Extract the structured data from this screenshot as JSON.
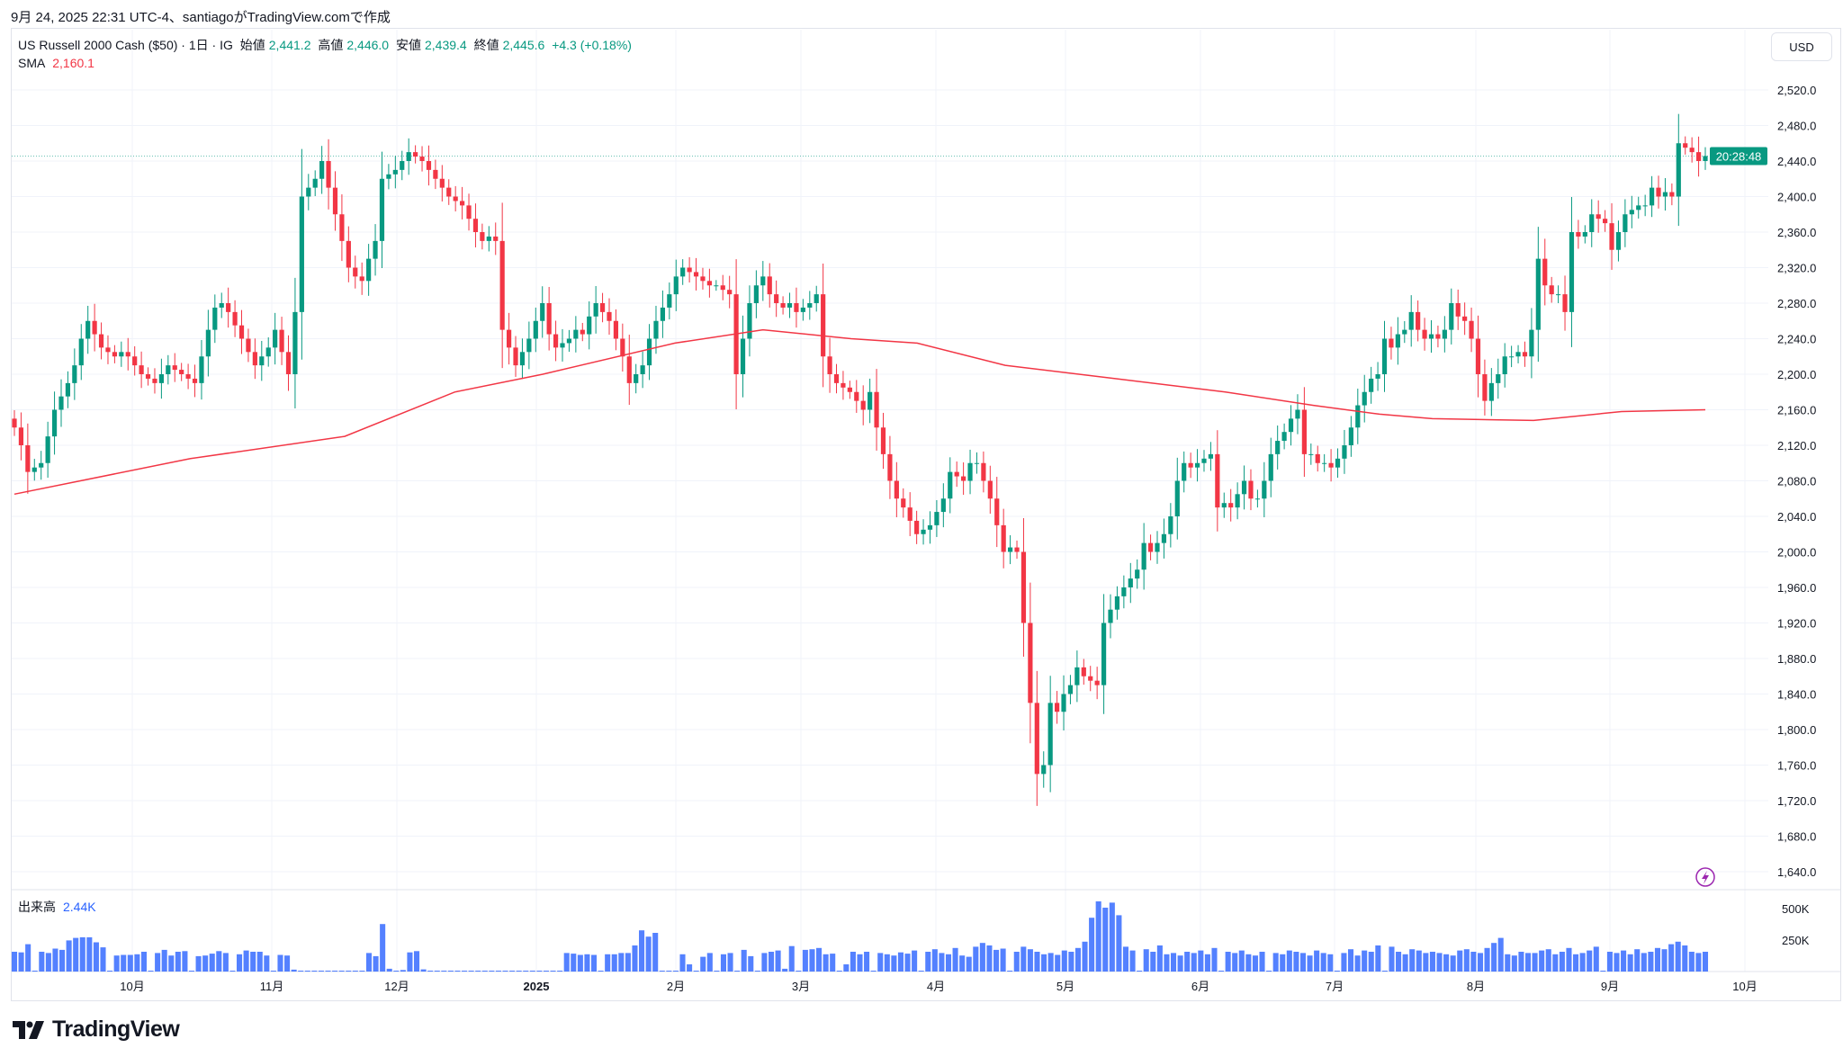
{
  "credit": "9月 24, 2025 22:31 UTC-4、santiagoがTradingView.comで作成",
  "legend": {
    "symbol": "US Russell 2000 Cash ($50) · 1日 · IG",
    "open_label": "始値",
    "open": "2,441.2",
    "high_label": "高値",
    "high": "2,446.0",
    "low_label": "安値",
    "low": "2,439.4",
    "close_label": "終値",
    "close": "2,445.6",
    "change": "+4.3 (+0.18%)",
    "sma_label": "SMA",
    "sma_value": "2,160.1"
  },
  "currency": "USD",
  "countdown": "20:28:48",
  "volume_legend": {
    "label": "出来高",
    "value": "2.44K"
  },
  "brand": "TradingView",
  "colors": {
    "up": "#089981",
    "down": "#f23645",
    "sma": "#f23645",
    "volume": "#2962ff",
    "lightning": "#9c27b0"
  },
  "icons": {
    "lightning": "lightning-icon",
    "logo": "tradingview-logo"
  },
  "chart_data": {
    "type": "candlestick",
    "ylim": [
      1620,
      2540
    ],
    "y_ticks": [
      "2,520.0",
      "2,480.0",
      "2,440.0",
      "2,400.0",
      "2,360.0",
      "2,320.0",
      "2,280.0",
      "2,240.0",
      "2,200.0",
      "2,160.0",
      "2,120.0",
      "2,080.0",
      "2,040.0",
      "2,000.0",
      "1,960.0",
      "1,920.0",
      "1,880.0",
      "1,840.0",
      "1,800.0",
      "1,760.0",
      "1,720.0",
      "1,680.0",
      "1,640.0"
    ],
    "y_tick_values": [
      2520,
      2480,
      2440,
      2400,
      2360,
      2320,
      2280,
      2240,
      2200,
      2160,
      2120,
      2080,
      2040,
      2000,
      1960,
      1920,
      1880,
      1840,
      1800,
      1760,
      1720,
      1680,
      1640
    ],
    "x_ticks": [
      "10月",
      "11月",
      "12月",
      "2025",
      "2月",
      "3月",
      "4月",
      "5月",
      "6月",
      "7月",
      "8月",
      "9月",
      "10月"
    ],
    "last_price": 2445.6,
    "closes": [
      2140,
      2120,
      2090,
      2095,
      2100,
      2130,
      2160,
      2175,
      2190,
      2210,
      2240,
      2260,
      2245,
      2230,
      2225,
      2220,
      2225,
      2220,
      2210,
      2200,
      2195,
      2190,
      2200,
      2210,
      2205,
      2200,
      2195,
      2190,
      2220,
      2250,
      2275,
      2280,
      2270,
      2255,
      2240,
      2225,
      2210,
      2220,
      2230,
      2250,
      2225,
      2200,
      2270,
      2400,
      2410,
      2420,
      2440,
      2410,
      2380,
      2350,
      2320,
      2310,
      2305,
      2330,
      2350,
      2420,
      2425,
      2430,
      2440,
      2450,
      2445,
      2440,
      2430,
      2420,
      2410,
      2400,
      2395,
      2390,
      2375,
      2360,
      2350,
      2355,
      2350,
      2250,
      2230,
      2210,
      2225,
      2240,
      2260,
      2280,
      2245,
      2230,
      2235,
      2240,
      2250,
      2245,
      2265,
      2280,
      2270,
      2260,
      2240,
      2220,
      2190,
      2200,
      2210,
      2240,
      2260,
      2275,
      2290,
      2310,
      2320,
      2315,
      2310,
      2305,
      2300,
      2300,
      2295,
      2290,
      2200,
      2240,
      2280,
      2300,
      2310,
      2290,
      2280,
      2275,
      2280,
      2270,
      2275,
      2280,
      2290,
      2220,
      2200,
      2190,
      2185,
      2180,
      2170,
      2160,
      2180,
      2140,
      2110,
      2080,
      2060,
      2050,
      2035,
      2020,
      2025,
      2030,
      2045,
      2060,
      2090,
      2085,
      2080,
      2100,
      2100,
      2080,
      2060,
      2030,
      2000,
      2005,
      2000,
      1920,
      1830,
      1750,
      1760,
      1830,
      1820,
      1840,
      1850,
      1870,
      1860,
      1855,
      1850,
      1920,
      1935,
      1950,
      1960,
      1970,
      1980,
      2010,
      2000,
      2010,
      2020,
      2040,
      2080,
      2100,
      2095,
      2100,
      2105,
      2110,
      2050,
      2055,
      2050,
      2065,
      2080,
      2060,
      2060,
      2080,
      2110,
      2125,
      2135,
      2150,
      2160,
      2110,
      2110,
      2100,
      2100,
      2095,
      2105,
      2120,
      2140,
      2165,
      2180,
      2195,
      2200,
      2240,
      2230,
      2245,
      2250,
      2270,
      2250,
      2240,
      2245,
      2240,
      2250,
      2280,
      2265,
      2260,
      2240,
      2200,
      2170,
      2190,
      2200,
      2220,
      2220,
      2225,
      2220,
      2250,
      2330,
      2300,
      2290,
      2290,
      2270,
      2360,
      2355,
      2360,
      2380,
      2375,
      2370,
      2340,
      2360,
      2380,
      2385,
      2390,
      2390,
      2410,
      2400,
      2405,
      2400,
      2460,
      2455,
      2450,
      2440,
      2445.6
    ],
    "sma": [
      [
        0,
        2065
      ],
      [
        40,
        2105
      ],
      [
        75,
        2130
      ],
      [
        100,
        2180
      ],
      [
        120,
        2200
      ],
      [
        150,
        2235
      ],
      [
        170,
        2250
      ],
      [
        190,
        2240
      ],
      [
        205,
        2235
      ],
      [
        225,
        2210
      ],
      [
        250,
        2195
      ],
      [
        275,
        2180
      ],
      [
        295,
        2165
      ],
      [
        310,
        2155
      ],
      [
        322,
        2150
      ],
      [
        345,
        2148
      ],
      [
        365,
        2158
      ],
      [
        384,
        2160
      ]
    ],
    "volumes_k": [
      150,
      145,
      210,
      0,
      150,
      140,
      175,
      165,
      240,
      260,
      265,
      265,
      225,
      185,
      0,
      120,
      125,
      125,
      130,
      150,
      0,
      140,
      165,
      120,
      150,
      155,
      0,
      115,
      120,
      135,
      155,
      140,
      0,
      130,
      160,
      150,
      150,
      120,
      0,
      125,
      120,
      8,
      0,
      0,
      0,
      0,
      0,
      0,
      0,
      0,
      0,
      0,
      140,
      115,
      370,
      15,
      0,
      5,
      145,
      155,
      10,
      0,
      0,
      0,
      0,
      0,
      0,
      0,
      0,
      0,
      0,
      0,
      0,
      0,
      0,
      0,
      0,
      0,
      0,
      0,
      0,
      140,
      135,
      125,
      130,
      125,
      0,
      130,
      130,
      140,
      140,
      200,
      320,
      270,
      300,
      0,
      0,
      0,
      130,
      50,
      0,
      110,
      140,
      0,
      130,
      140,
      0,
      165,
      115,
      0,
      140,
      150,
      160,
      15,
      195,
      0,
      165,
      170,
      180,
      130,
      135,
      0,
      50,
      150,
      130,
      150,
      0,
      140,
      130,
      120,
      145,
      135,
      160,
      0,
      150,
      170,
      140,
      130,
      180,
      120,
      110,
      190,
      220,
      200,
      165,
      175,
      0,
      150,
      190,
      170,
      150,
      130,
      140,
      125,
      160,
      150,
      180,
      230,
      420,
      550,
      500,
      540,
      440,
      190,
      160,
      0,
      170,
      150,
      200,
      130,
      140,
      120,
      150,
      140,
      160,
      130,
      180,
      0,
      150,
      140,
      160,
      130,
      120,
      150,
      0,
      140,
      130,
      160,
      150,
      140,
      120,
      160,
      140,
      130,
      0,
      140,
      170,
      120,
      160,
      150,
      200,
      0,
      190,
      150,
      130,
      170,
      160,
      140,
      150,
      140,
      130,
      120,
      160,
      170,
      150,
      140,
      180,
      220,
      260,
      130,
      120,
      150,
      140,
      140,
      160,
      170,
      130,
      150,
      180,
      130,
      140,
      160,
      190,
      0,
      150,
      140,
      160,
      130,
      170,
      140,
      150,
      180,
      170,
      210,
      230,
      200,
      150,
      140,
      150
    ]
  }
}
